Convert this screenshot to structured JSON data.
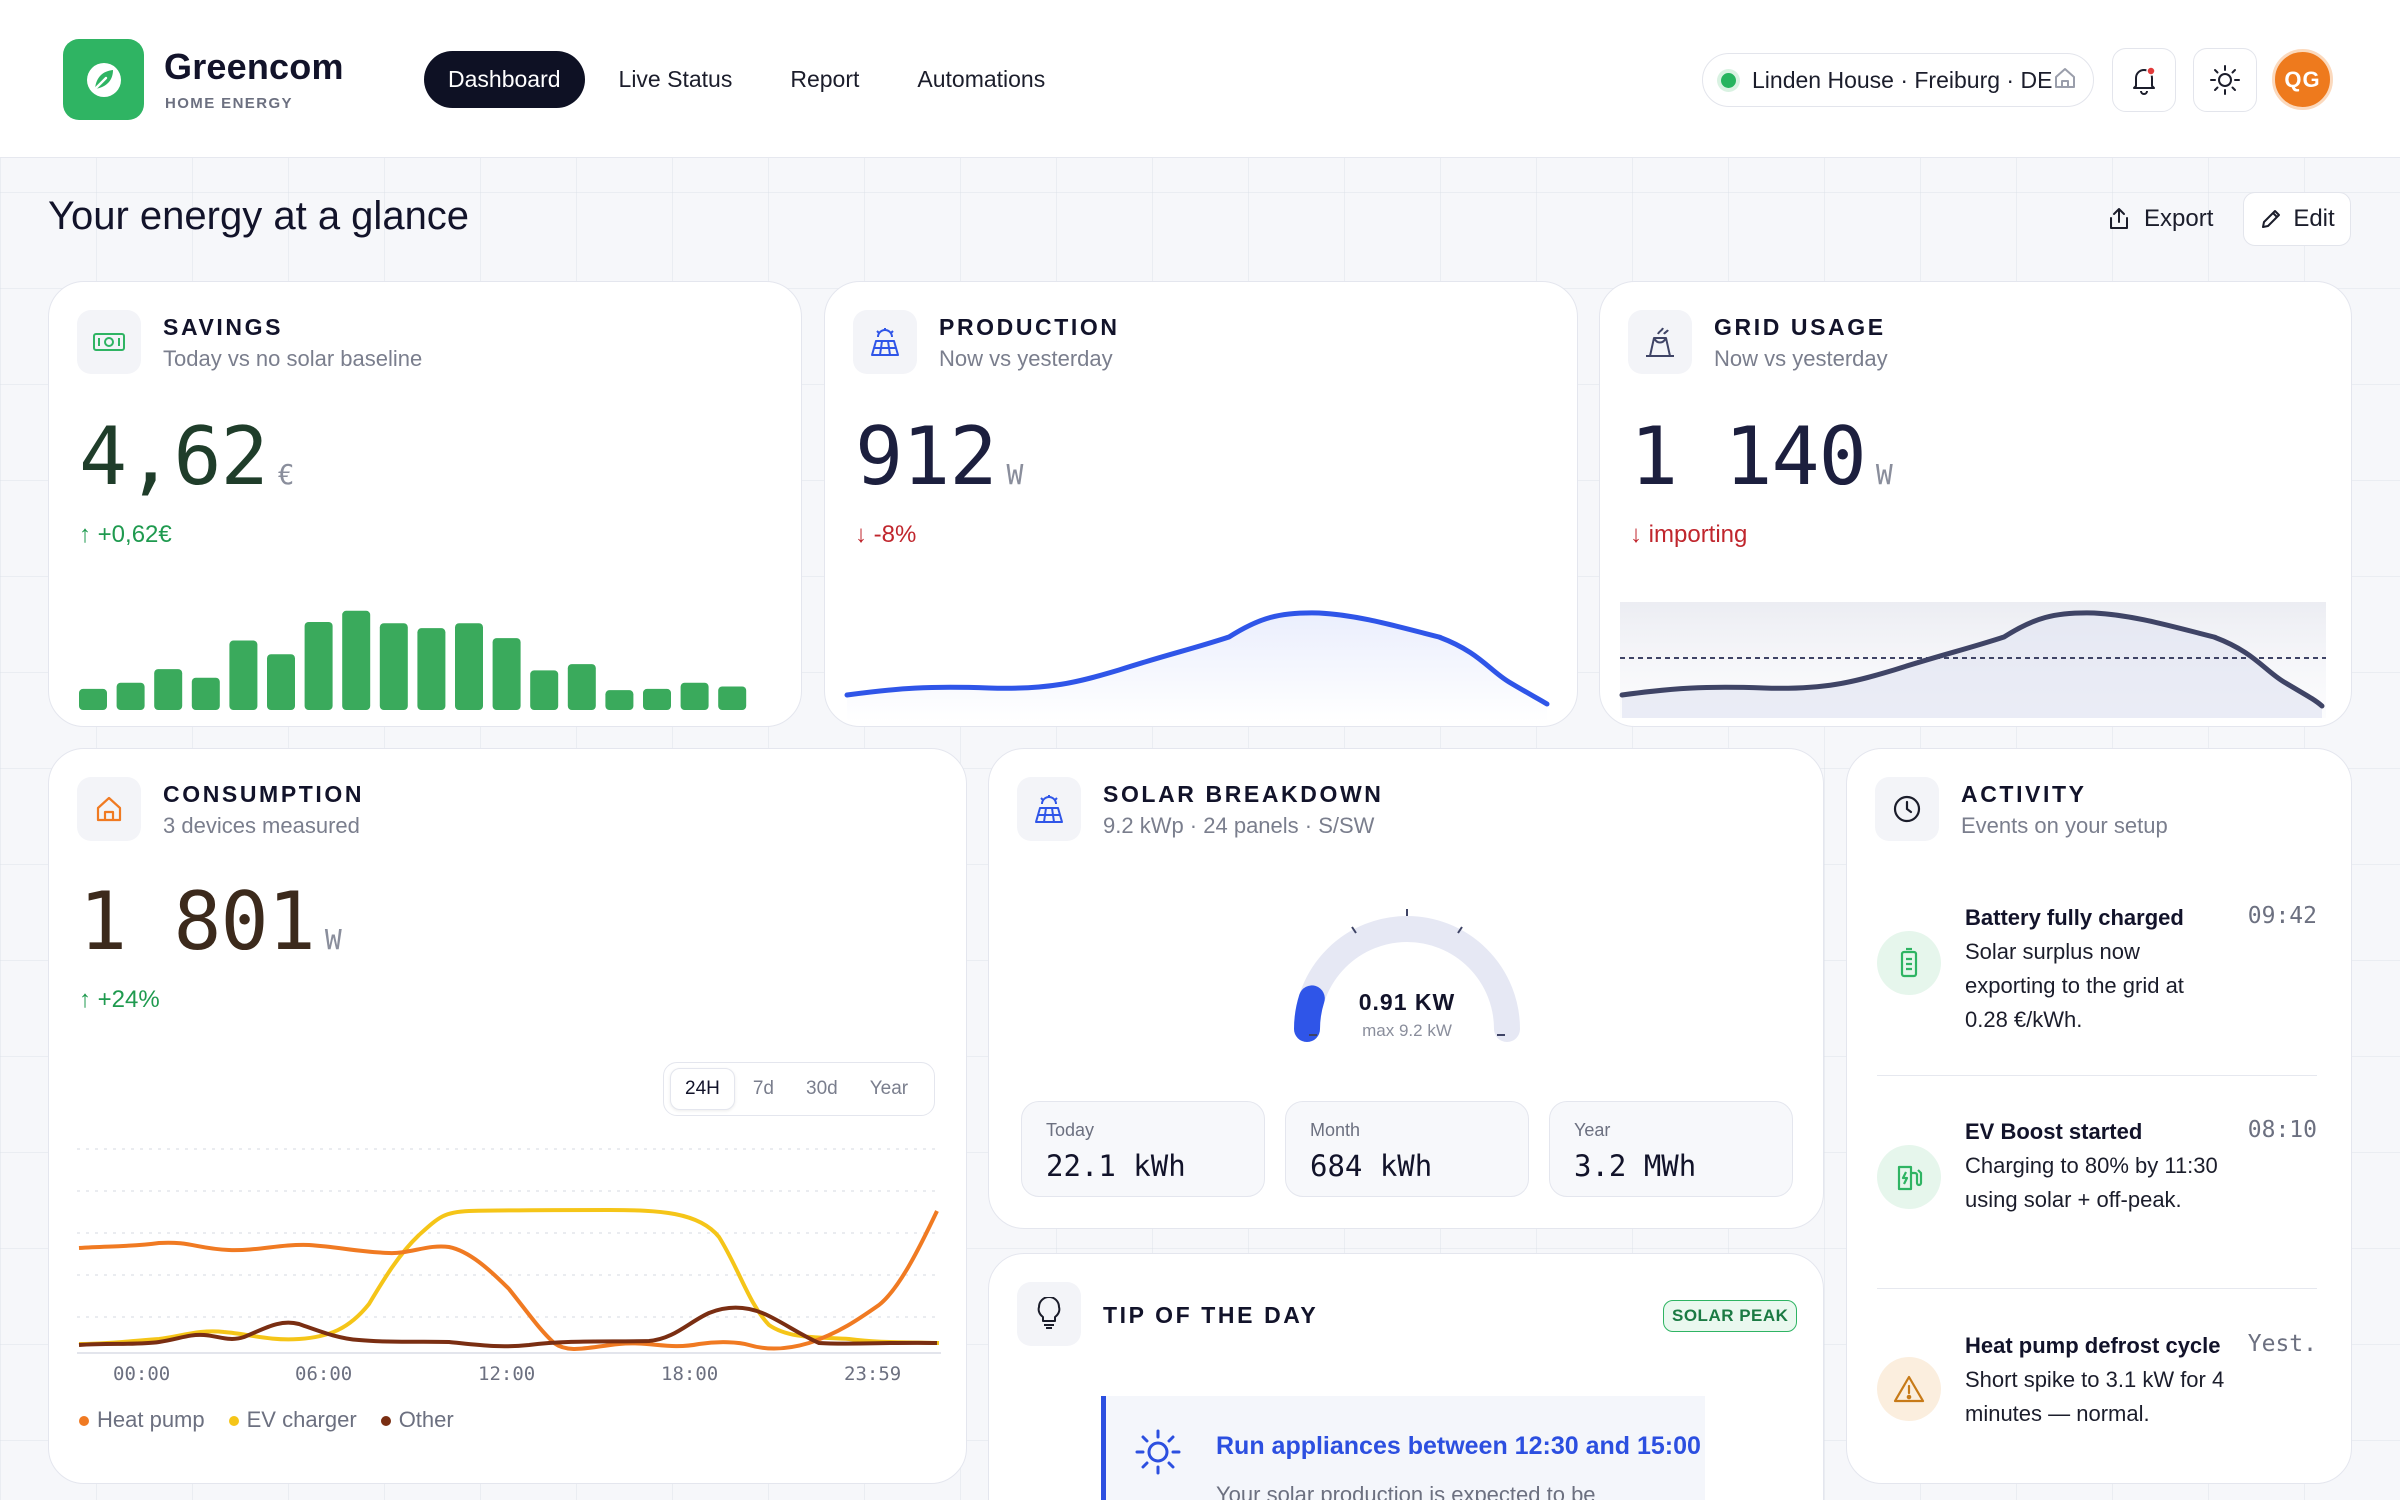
{
  "brand": {
    "name": "Greencom",
    "subtitle": "HOME ENERGY"
  },
  "nav": {
    "tabs": [
      "Dashboard",
      "Live Status",
      "Report",
      "Automations"
    ],
    "active": "Dashboard"
  },
  "location": {
    "label": "Linden House · Freiburg · DE",
    "status_color": "#27b45f"
  },
  "user": {
    "initials": "QG",
    "avatar_color": "#ee7a1d"
  },
  "page": {
    "title": "Your energy at a glance",
    "export_label": "Export",
    "edit_label": "Edit"
  },
  "savings": {
    "title": "SAVINGS",
    "subtitle": "Today vs no solar baseline",
    "value": "4,62",
    "unit": "€",
    "delta": "↑ +0,62€",
    "color": "#3aaa5c",
    "bars": [
      0.17,
      0.22,
      0.33,
      0.26,
      0.56,
      0.45,
      0.71,
      0.8,
      0.7,
      0.66,
      0.7,
      0.58,
      0.32,
      0.37,
      0.16,
      0.17,
      0.22,
      0.19
    ]
  },
  "production": {
    "title": "PRODUCTION",
    "subtitle": "Now vs yesterday",
    "value": "912",
    "unit": "W",
    "delta": "↓ -8%",
    "color": "#2f55e8"
  },
  "grid": {
    "title": "GRID USAGE",
    "subtitle": "Now vs yesterday",
    "value": "1 140",
    "unit": "W",
    "delta": "↓ importing",
    "color": "#3f4466"
  },
  "consumption": {
    "title": "CONSUMPTION",
    "subtitle": "3 devices measured",
    "value": "1 801",
    "unit": "W",
    "delta": "↑ +24%",
    "ranges": [
      "24H",
      "7d",
      "30d",
      "Year"
    ],
    "active_range": "24H",
    "x_ticks": [
      "00:00",
      "06:00",
      "12:00",
      "18:00",
      "23:59"
    ],
    "legend": [
      {
        "name": "Heat pump",
        "color": "#f07a22"
      },
      {
        "name": "EV charger",
        "color": "#f5c518"
      },
      {
        "name": "Other",
        "color": "#7a2e12"
      }
    ]
  },
  "solar": {
    "title": "SOLAR BREAKDOWN",
    "subtitle": "9.2 kWp · 24 panels · S/SW",
    "gauge_value": "0.91 KW",
    "gauge_max": "max 9.2 kW",
    "gauge_fraction": 0.099,
    "stats": [
      {
        "label": "Today",
        "value": "22.1 kWh"
      },
      {
        "label": "Month",
        "value": "684 kWh"
      },
      {
        "label": "Year",
        "value": "3.2 MWh"
      }
    ]
  },
  "tip": {
    "title": "TIP OF THE DAY",
    "badge": "SOLAR PEAK",
    "headline": "Run appliances between 12:30 and 15:00",
    "body": "Your solar production is expected to be"
  },
  "activity": {
    "title": "ACTIVITY",
    "subtitle": "Events on your setup",
    "items": [
      {
        "title": "Battery fully charged",
        "time": "09:42",
        "desc": "Solar surplus now exporting to the grid at 0.28 €/kWh.",
        "icon": "battery-icon"
      },
      {
        "title": "EV Boost started",
        "time": "08:10",
        "desc": "Charging to 80% by 11:30 using solar + off-peak.",
        "icon": "ev-charger-icon"
      },
      {
        "title": "Heat pump defrost cycle",
        "time": "Yest.",
        "desc": "Short spike to 3.1 kW for 4 minutes — normal.",
        "icon": "warning-icon"
      }
    ]
  }
}
